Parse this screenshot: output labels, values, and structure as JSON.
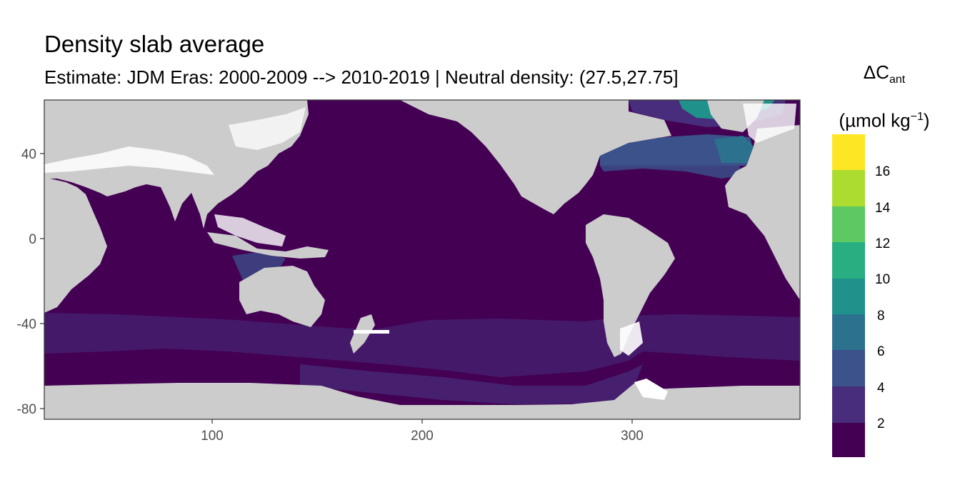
{
  "title": "Density slab average",
  "subtitle": "Estimate: JDM Eras: 2000-2009 --> 2010-2019 | Neutral density: (27.5,27.75]",
  "legend": {
    "symbol": "ΔC",
    "symbol_sub": "ant",
    "unit_open": "(µmol kg",
    "unit_sup": "−1",
    "unit_close": ")",
    "breaks": [
      "2",
      "4",
      "6",
      "8",
      "10",
      "12",
      "14",
      "16"
    ],
    "colors": [
      "#440154",
      "#472d7b",
      "#3b528b",
      "#2c728e",
      "#21918c",
      "#28ae80",
      "#5ec962",
      "#addc30",
      "#fde725"
    ]
  },
  "axes": {
    "x_ticks": [
      "100",
      "200",
      "300"
    ],
    "y_ticks": [
      "40",
      "0",
      "-40",
      "-80"
    ],
    "xlim": [
      20,
      380
    ],
    "ylim": [
      -85,
      65
    ]
  },
  "colors": {
    "land": "#cccccc",
    "ocean_base": "#440154",
    "no_data": "#ffffff"
  }
}
